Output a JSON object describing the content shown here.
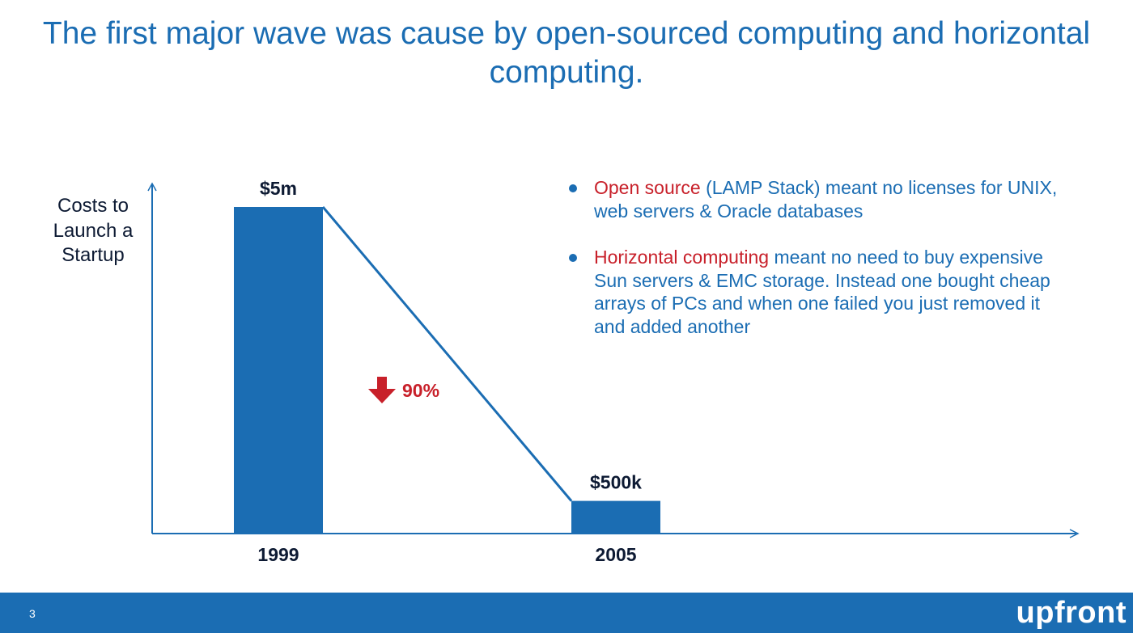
{
  "slide": {
    "title": "The first major wave was cause by open-sourced computing and horizontal computing.",
    "page_number": "3",
    "brand": "upfront",
    "colors": {
      "accent": "#1b6db3",
      "highlight": "#c8202a",
      "dark_text": "#0d1a33"
    }
  },
  "bullets": [
    {
      "highlight": "Open source",
      "text": " (LAMP Stack) meant no licenses for UNIX, web servers & Oracle databases"
    },
    {
      "highlight": "Horizontal computing",
      "text": " meant no need to buy expensive  Sun servers & EMC storage. Instead one bought cheap arrays of PCs and when one failed you just removed it and added another"
    }
  ],
  "chart_data": {
    "type": "bar",
    "categories": [
      "1999",
      "2005"
    ],
    "values": [
      5000000,
      500000
    ],
    "value_labels": [
      "$5m",
      "$500k"
    ],
    "ylabel": "Costs to Launch a Startup",
    "ylim": [
      0,
      5500000
    ],
    "grid": false,
    "annotation": {
      "text": "90%",
      "icon": "down-arrow-icon",
      "meaning": "decrease"
    },
    "trend_line": true
  }
}
